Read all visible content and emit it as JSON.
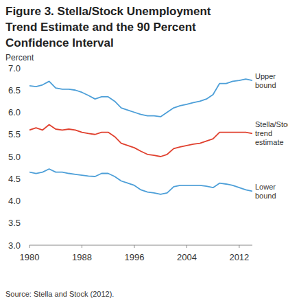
{
  "chart_data": {
    "type": "line",
    "title": "Figure 3. Stella/Stock Unemployment Trend Estimate and the 90 Percent Confidence Interval",
    "y_label": "Percent",
    "source": "Source: Stella and Stock (2012).",
    "x": [
      1980,
      1981,
      1982,
      1983,
      1984,
      1985,
      1986,
      1987,
      1988,
      1989,
      1990,
      1991,
      1992,
      1993,
      1994,
      1995,
      1996,
      1997,
      1998,
      1999,
      2000,
      2001,
      2002,
      2003,
      2004,
      2005,
      2006,
      2007,
      2008,
      2009,
      2010,
      2011,
      2012,
      2013,
      2014
    ],
    "series": [
      {
        "name": "Upper bound",
        "color": "#4d9fd8",
        "values": [
          6.6,
          6.58,
          6.62,
          6.7,
          6.55,
          6.52,
          6.52,
          6.5,
          6.45,
          6.38,
          6.3,
          6.35,
          6.35,
          6.25,
          6.1,
          6.05,
          6.0,
          5.95,
          5.92,
          5.92,
          5.9,
          6.0,
          6.1,
          6.15,
          6.18,
          6.22,
          6.25,
          6.3,
          6.4,
          6.65,
          6.65,
          6.7,
          6.72,
          6.75,
          6.72
        ]
      },
      {
        "name": "Stella/Stock trend estimate",
        "color": "#e0402e",
        "values": [
          5.6,
          5.65,
          5.6,
          5.72,
          5.62,
          5.6,
          5.62,
          5.6,
          5.55,
          5.52,
          5.5,
          5.55,
          5.55,
          5.45,
          5.3,
          5.25,
          5.2,
          5.12,
          5.05,
          5.03,
          5.0,
          5.05,
          5.18,
          5.22,
          5.25,
          5.28,
          5.3,
          5.35,
          5.4,
          5.55,
          5.55,
          5.55,
          5.55,
          5.55,
          5.52
        ]
      },
      {
        "name": "Lower bound",
        "color": "#4d9fd8",
        "values": [
          4.65,
          4.62,
          4.65,
          4.72,
          4.65,
          4.65,
          4.62,
          4.6,
          4.58,
          4.56,
          4.55,
          4.62,
          4.62,
          4.55,
          4.45,
          4.4,
          4.35,
          4.25,
          4.2,
          4.18,
          4.15,
          4.18,
          4.32,
          4.35,
          4.35,
          4.35,
          4.35,
          4.33,
          4.3,
          4.4,
          4.38,
          4.35,
          4.3,
          4.25,
          4.22
        ]
      }
    ],
    "xlim": [
      1980,
      2014
    ],
    "xticks": [
      1980,
      1988,
      1996,
      2004,
      2012
    ],
    "ylim": [
      3,
      7
    ],
    "yticks": [
      {
        "value": 3,
        "label": "3.0"
      },
      3.5,
      {
        "value": 4,
        "label": "4.0"
      },
      4.5,
      {
        "value": 5,
        "label": "5.0"
      },
      5.5,
      {
        "value": 6,
        "label": "6.0"
      },
      6.5,
      {
        "value": 7,
        "label": "7.0"
      }
    ],
    "grid": false
  }
}
